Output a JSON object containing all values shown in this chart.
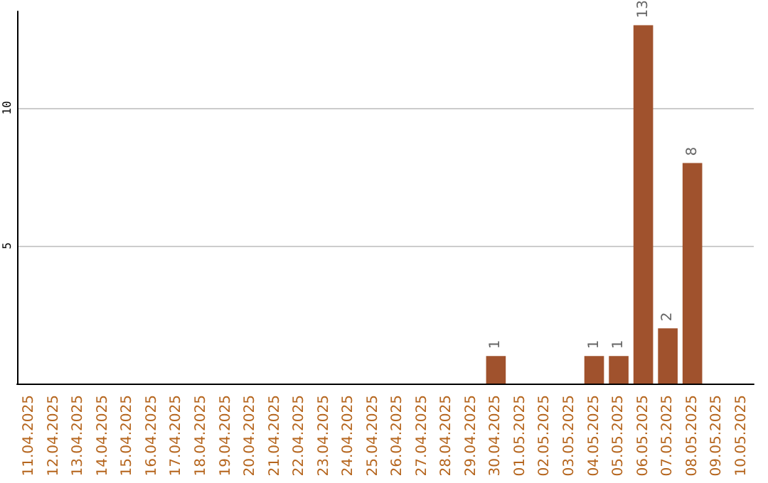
{
  "chart_data": {
    "type": "bar",
    "categories": [
      "11.04.2025",
      "12.04.2025",
      "13.04.2025",
      "14.04.2025",
      "15.04.2025",
      "16.04.2025",
      "17.04.2025",
      "18.04.2025",
      "19.04.2025",
      "20.04.2025",
      "21.04.2025",
      "22.04.2025",
      "23.04.2025",
      "24.04.2025",
      "25.04.2025",
      "26.04.2025",
      "27.04.2025",
      "28.04.2025",
      "29.04.2025",
      "30.04.2025",
      "01.05.2025",
      "02.05.2025",
      "03.05.2025",
      "04.05.2025",
      "05.05.2025",
      "06.05.2025",
      "07.05.2025",
      "08.05.2025",
      "09.05.2025",
      "10.05.2025"
    ],
    "values": [
      null,
      null,
      null,
      null,
      null,
      null,
      null,
      null,
      null,
      null,
      null,
      null,
      null,
      null,
      null,
      null,
      null,
      null,
      null,
      1,
      null,
      null,
      null,
      1,
      1,
      13,
      2,
      8,
      null,
      null
    ],
    "color": "#a0522d",
    "ylim": [
      0,
      13.5
    ],
    "yticks": [
      5,
      10
    ],
    "grid": "y",
    "data_labels": true
  }
}
